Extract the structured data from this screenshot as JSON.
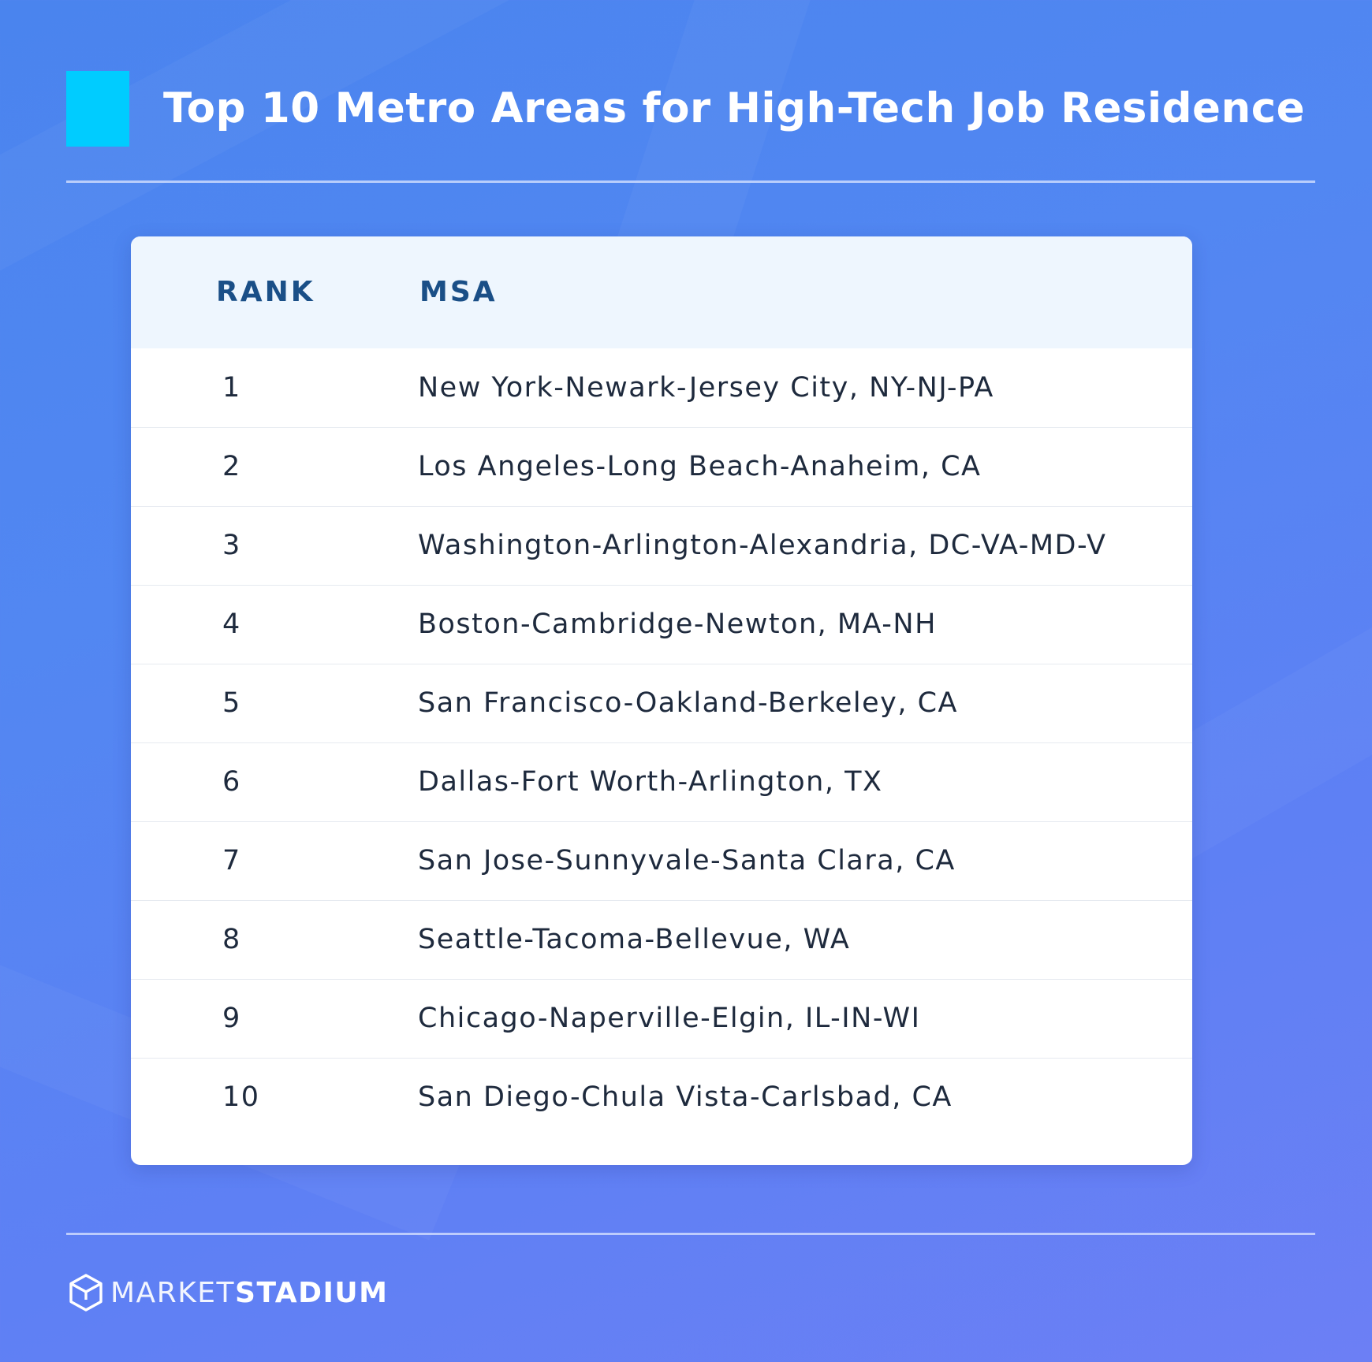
{
  "title": "Top 10 Metro Areas for High-Tech Job Residence",
  "colors": {
    "accent_square": "#00ccff",
    "header_text": "#1a4f87",
    "body_text": "#1e2a3d",
    "header_bg": "#eef6fe"
  },
  "chart_data": {
    "type": "table",
    "columns": [
      "RANK",
      "MSA"
    ],
    "rows": [
      [
        "1",
        "New York-Newark-Jersey City, NY-NJ-PA"
      ],
      [
        "2",
        "Los Angeles-Long Beach-Anaheim, CA"
      ],
      [
        "3",
        "Washington-Arlington-Alexandria, DC-VA-MD-V"
      ],
      [
        "4",
        "Boston-Cambridge-Newton, MA-NH"
      ],
      [
        "5",
        "San Francisco-Oakland-Berkeley, CA"
      ],
      [
        "6",
        "Dallas-Fort Worth-Arlington, TX"
      ],
      [
        "7",
        "San Jose-Sunnyvale-Santa Clara, CA"
      ],
      [
        "8",
        "Seattle-Tacoma-Bellevue, WA"
      ],
      [
        "9",
        "Chicago-Naperville-Elgin, IL-IN-WI"
      ],
      [
        "10",
        "San Diego-Chula Vista-Carlsbad, CA"
      ]
    ]
  },
  "logo": {
    "icon": "cube-outline-icon",
    "word_light": "MARKET",
    "word_bold": "STADIUM"
  }
}
